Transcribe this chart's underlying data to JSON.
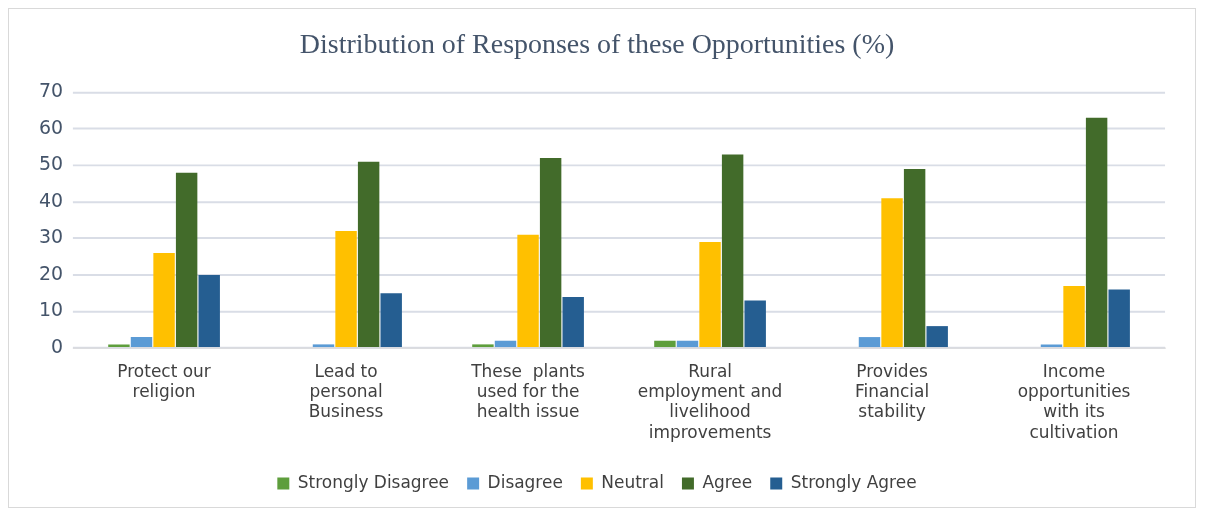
{
  "chart_data": {
    "type": "bar",
    "title": "Distribution of Responses of these Opportunities (%)",
    "categories": [
      "Protect our religion",
      "Lead to personal Business",
      "These  plants used for the health issue",
      "Rural employment and livelihood improvements",
      "Provides Financial stability",
      "Income opportunities with its cultivation"
    ],
    "series": [
      {
        "name": "Strongly Disagree",
        "color": "#5e9e3c",
        "values": [
          1,
          0,
          1,
          2,
          0,
          0
        ]
      },
      {
        "name": "Disagree",
        "color": "#5b9bd5",
        "values": [
          3,
          1,
          2,
          2,
          3,
          1
        ]
      },
      {
        "name": "Neutral",
        "color": "#ffc000",
        "values": [
          26,
          32,
          31,
          29,
          41,
          17
        ]
      },
      {
        "name": "Agree",
        "color": "#426b2a",
        "values": [
          48,
          51,
          52,
          53,
          49,
          63
        ]
      },
      {
        "name": "Strongly Agree",
        "color": "#255e91",
        "values": [
          20,
          15,
          14,
          13,
          6,
          16
        ]
      }
    ],
    "ylim": [
      0,
      70
    ],
    "yticks": [
      0,
      10,
      20,
      30,
      40,
      50,
      60,
      70
    ],
    "grid": "y",
    "legend": "bottom"
  }
}
